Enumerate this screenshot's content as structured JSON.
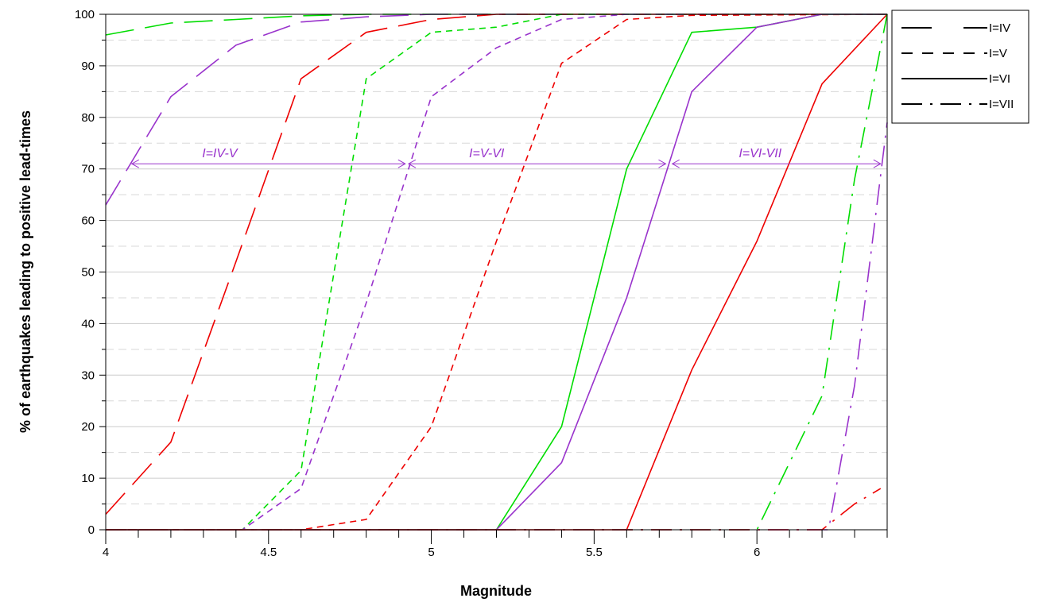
{
  "chart_data": {
    "type": "line",
    "title": "",
    "xlabel": "Magnitude",
    "ylabel": "% of earthquakes leading to positive lead-times",
    "xlim": [
      4,
      6.4
    ],
    "ylim": [
      0,
      100
    ],
    "x_ticks": [
      4,
      4.5,
      5,
      5.5,
      6
    ],
    "x_tick_labels": [
      "4",
      "4.5",
      "5",
      "5.5",
      "6"
    ],
    "x_minor_step": 0.1,
    "y_ticks": [
      0,
      10,
      20,
      30,
      40,
      50,
      60,
      70,
      80,
      90,
      100
    ],
    "y_tick_labels": [
      "0",
      "10",
      "20",
      "30",
      "40",
      "50",
      "60",
      "70",
      "80",
      "90",
      "100"
    ],
    "y_minor_step": 5,
    "grid": true,
    "legend_position": "right-top",
    "legend": [
      {
        "label": "I=IV",
        "dash": "long"
      },
      {
        "label": "I=V",
        "dash": "short"
      },
      {
        "label": "I=VI",
        "dash": "solid"
      },
      {
        "label": "I=VII",
        "dash": "dashdot"
      }
    ],
    "series": [
      {
        "intensity": "I=IV",
        "color": "#00dd00",
        "dash": "long",
        "x": [
          4.0,
          4.2,
          4.4,
          4.6,
          4.8,
          5.0,
          6.4
        ],
        "y": [
          96,
          98.3,
          99,
          99.7,
          100,
          100,
          100
        ]
      },
      {
        "intensity": "I=IV",
        "color": "#9933cc",
        "dash": "long",
        "x": [
          4.0,
          4.2,
          4.4,
          4.6,
          4.8,
          5.0,
          6.4
        ],
        "y": [
          63,
          84,
          94,
          98.5,
          99.5,
          100,
          100
        ]
      },
      {
        "intensity": "I=IV",
        "color": "#ee0000",
        "dash": "long",
        "x": [
          4.0,
          4.2,
          4.4,
          4.6,
          4.8,
          5.0,
          5.2,
          6.4
        ],
        "y": [
          3,
          17,
          52,
          87.5,
          96.5,
          99,
          100,
          100
        ]
      },
      {
        "intensity": "I=V",
        "color": "#00dd00",
        "dash": "short",
        "x": [
          4.0,
          4.42,
          4.6,
          4.8,
          5.0,
          5.2,
          5.4,
          6.4
        ],
        "y": [
          0,
          0,
          11.5,
          87.5,
          96.5,
          97.5,
          100,
          100
        ]
      },
      {
        "intensity": "I=V",
        "color": "#9933cc",
        "dash": "short",
        "x": [
          4.0,
          4.42,
          4.6,
          4.8,
          5.0,
          5.2,
          5.4,
          5.6,
          6.4
        ],
        "y": [
          0,
          0,
          8,
          44,
          84,
          93.5,
          99,
          100,
          100
        ]
      },
      {
        "intensity": "I=V",
        "color": "#ee0000",
        "dash": "short",
        "x": [
          4.0,
          4.6,
          4.8,
          5.0,
          5.2,
          5.4,
          5.6,
          5.8,
          6.4
        ],
        "y": [
          0,
          0,
          2,
          20,
          56,
          90.5,
          99,
          99.8,
          100
        ]
      },
      {
        "intensity": "I=VI",
        "color": "#00dd00",
        "dash": "solid",
        "x": [
          4.0,
          5.2,
          5.4,
          5.6,
          5.8,
          6.0,
          6.2,
          6.4
        ],
        "y": [
          0,
          0,
          20,
          70,
          96.5,
          97.5,
          100,
          100
        ]
      },
      {
        "intensity": "I=VI",
        "color": "#9933cc",
        "dash": "solid",
        "x": [
          4.0,
          5.2,
          5.4,
          5.6,
          5.8,
          6.0,
          6.2,
          6.4
        ],
        "y": [
          0,
          0,
          13,
          45,
          85,
          97.5,
          100,
          100
        ]
      },
      {
        "intensity": "I=VI",
        "color": "#ee0000",
        "dash": "solid",
        "x": [
          4.0,
          5.6,
          5.8,
          6.0,
          6.2,
          6.4
        ],
        "y": [
          0,
          0,
          31,
          56,
          86.5,
          100
        ]
      },
      {
        "intensity": "I=VII",
        "color": "#00dd00",
        "dash": "dashdot",
        "x": [
          4.0,
          6.0,
          6.2,
          6.3,
          6.4
        ],
        "y": [
          0,
          0,
          26,
          68,
          100
        ]
      },
      {
        "intensity": "I=VII",
        "color": "#9933cc",
        "dash": "dashdot",
        "x": [
          4.0,
          6.22,
          6.3,
          6.4
        ],
        "y": [
          0,
          0,
          28,
          79
        ]
      },
      {
        "intensity": "I=VII",
        "color": "#ee0000",
        "dash": "dashdot",
        "x": [
          4.0,
          6.2,
          6.3,
          6.38
        ],
        "y": [
          0,
          0,
          5,
          8
        ]
      }
    ],
    "annotations": [
      {
        "label": "I=IV-V",
        "x_start": 4.08,
        "x_end": 4.92,
        "y": 71,
        "color": "#9933cc",
        "label_x": 4.35
      },
      {
        "label": "I=V-VI",
        "x_start": 4.93,
        "x_end": 5.72,
        "y": 71,
        "color": "#9933cc",
        "label_x": 5.17
      },
      {
        "label": "I=VI-VII",
        "x_start": 5.74,
        "x_end": 6.38,
        "y": 71,
        "color": "#9933cc",
        "label_x": 6.01
      }
    ]
  }
}
